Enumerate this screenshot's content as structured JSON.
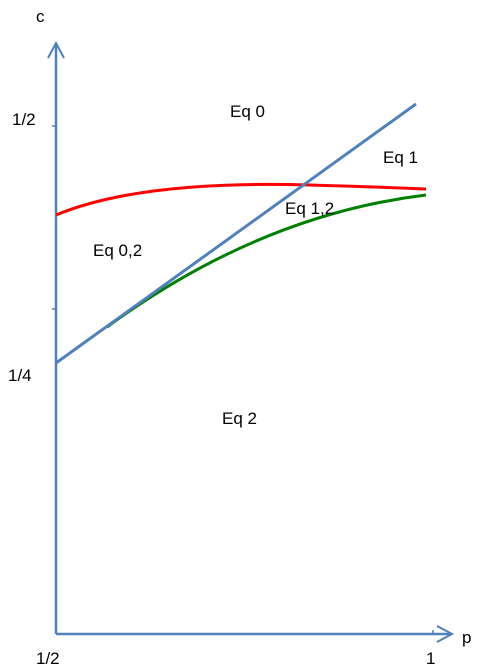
{
  "axes": {
    "x_label": "p",
    "y_label": "c",
    "x_ticks": [
      "1/2",
      "1"
    ],
    "y_ticks": [
      "1/2",
      "1/4"
    ],
    "axis_color": "#4f81bd"
  },
  "regions": {
    "eq0": "Eq 0",
    "eq1": "Eq 1",
    "eq12": "Eq 1,2",
    "eq02": "Eq 0,2",
    "eq2": "Eq 2"
  },
  "curves": {
    "straight_line_color": "#4f81bd",
    "red_curve_color": "#ff0000",
    "green_curve_color": "#008000"
  }
}
